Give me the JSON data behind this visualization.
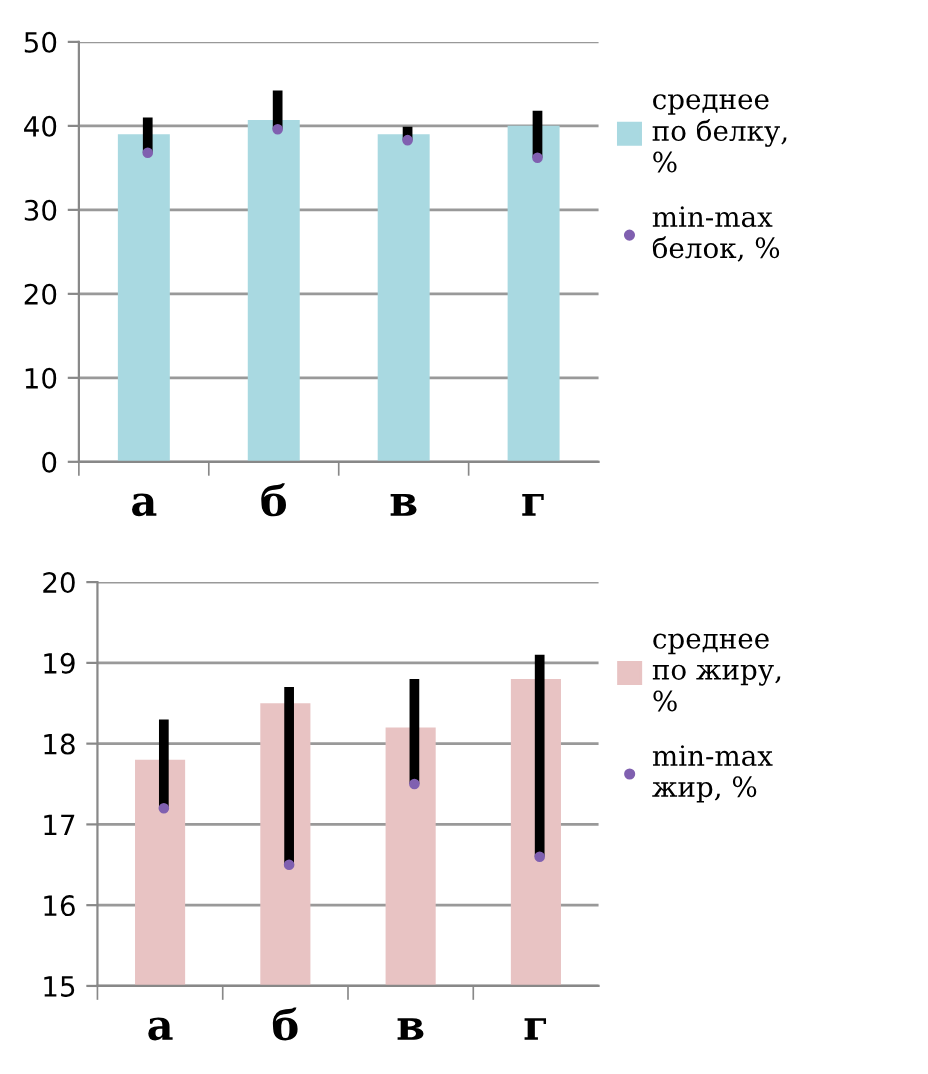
{
  "chart_data": [
    {
      "type": "bar",
      "categories": [
        "а",
        "б",
        "в",
        "г"
      ],
      "series": [
        {
          "name": "среднее\nпо белку,\n%",
          "color": "#a9d9e1",
          "values": [
            39,
            40.7,
            39,
            40
          ]
        },
        {
          "type": "scatter",
          "name": "min-max\nбелок, %",
          "color": "#8060b0",
          "values": [
            36.8,
            39.6,
            38.3,
            36.2
          ],
          "errors": [
            [
              36.8,
              41
            ],
            [
              39.6,
              44.2
            ],
            [
              38.3,
              39.9
            ],
            [
              36.2,
              41.8
            ]
          ]
        }
      ],
      "ylim": [
        0,
        50
      ],
      "yticks": [
        0,
        10,
        20,
        30,
        40,
        50
      ],
      "grid": "y",
      "legend": "top right"
    },
    {
      "type": "bar",
      "categories": [
        "а",
        "б",
        "в",
        "г"
      ],
      "series": [
        {
          "name": "среднее\nпо жиру,\n%",
          "color": "#e8c3c3",
          "values": [
            17.8,
            18.5,
            18.2,
            18.8
          ]
        },
        {
          "type": "scatter",
          "name": "min-max\nжир, %",
          "color": "#8060b0",
          "values": [
            17.2,
            16.5,
            17.5,
            16.6
          ],
          "errors": [
            [
              17.2,
              18.3
            ],
            [
              16.5,
              18.7
            ],
            [
              17.5,
              18.8
            ],
            [
              16.6,
              19.1
            ]
          ]
        }
      ],
      "ylim": [
        15,
        20
      ],
      "yticks": [
        15,
        16,
        17,
        18,
        19,
        20
      ],
      "grid": "y",
      "legend": "top right"
    }
  ]
}
